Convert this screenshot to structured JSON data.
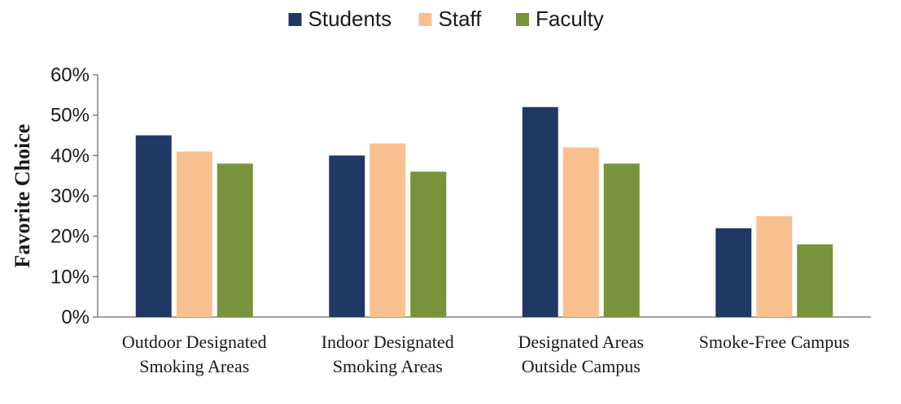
{
  "chart_data": {
    "type": "bar",
    "categories": [
      "Outdoor Designated Smoking Areas",
      "Indoor Designated Smoking Areas",
      "Designated Areas Outside Campus",
      "Smoke-Free Campus"
    ],
    "series": [
      {
        "name": "Students",
        "color": "#1f3864",
        "values": [
          0.45,
          0.4,
          0.52,
          0.22
        ]
      },
      {
        "name": "Staff",
        "color": "#f9c08f",
        "values": [
          0.41,
          0.43,
          0.42,
          0.25
        ]
      },
      {
        "name": "Faculty",
        "color": "#77933c",
        "values": [
          0.38,
          0.36,
          0.38,
          0.18
        ]
      }
    ],
    "title": "",
    "xlabel": "",
    "ylabel": "Favorite Choice",
    "ylim": [
      0,
      0.6
    ],
    "yticks": [
      0,
      0.1,
      0.2,
      0.3,
      0.4,
      0.5,
      0.6
    ],
    "ytick_labels": [
      "0%",
      "10%",
      "20%",
      "30%",
      "40%",
      "50%",
      "60%"
    ],
    "grid": false,
    "legend": "top-center"
  }
}
